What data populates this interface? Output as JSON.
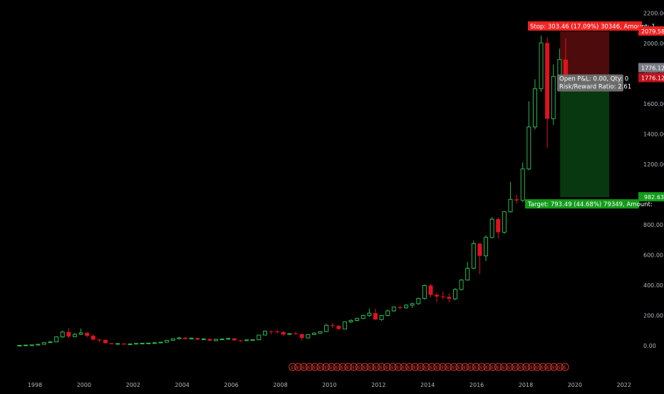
{
  "chart_data": {
    "type": "candlestick",
    "interval": "quarterly",
    "ylim": [
      -160,
      2230
    ],
    "y_ticks": [
      0,
      200,
      400,
      600,
      800,
      1000,
      1200,
      1400,
      1600,
      1800,
      2000,
      2200
    ],
    "y_tick_labels": [
      "0.00",
      "200.00",
      "400.00",
      "600.00",
      "800.00",
      "1000.00",
      "1200.00",
      "1400.00",
      "1600.00",
      "1800.00",
      "2000.00",
      "2200.00"
    ],
    "x_ticks": [
      1998,
      2000,
      2002,
      2004,
      2006,
      2008,
      2010,
      2012,
      2014,
      2016,
      2018,
      2020,
      2022
    ],
    "x_tick_labels": [
      "1998",
      "2000",
      "2002",
      "2004",
      "2006",
      "2008",
      "2010",
      "2012",
      "2014",
      "2016",
      "2018",
      "2020",
      "2022"
    ],
    "xlim": [
      1997.0,
      2022.6
    ],
    "candles": [
      {
        "t": 1997.375,
        "o": 1.5,
        "h": 3,
        "l": 1,
        "c": 2
      },
      {
        "t": 1997.625,
        "o": 2,
        "h": 5,
        "l": 1.5,
        "c": 4
      },
      {
        "t": 1997.875,
        "o": 4,
        "h": 6,
        "l": 3,
        "c": 5
      },
      {
        "t": 1998.125,
        "o": 5,
        "h": 10,
        "l": 4,
        "c": 9
      },
      {
        "t": 1998.375,
        "o": 9,
        "h": 22,
        "l": 8,
        "c": 20
      },
      {
        "t": 1998.625,
        "o": 20,
        "h": 30,
        "l": 18,
        "c": 25
      },
      {
        "t": 1998.875,
        "o": 25,
        "h": 62,
        "l": 24,
        "c": 58
      },
      {
        "t": 1999.125,
        "o": 58,
        "h": 100,
        "l": 50,
        "c": 90
      },
      {
        "t": 1999.375,
        "o": 90,
        "h": 115,
        "l": 50,
        "c": 60
      },
      {
        "t": 1999.625,
        "o": 60,
        "h": 85,
        "l": 55,
        "c": 75
      },
      {
        "t": 1999.875,
        "o": 75,
        "h": 113,
        "l": 70,
        "c": 85
      },
      {
        "t": 2000.125,
        "o": 85,
        "h": 90,
        "l": 55,
        "c": 65
      },
      {
        "t": 2000.375,
        "o": 65,
        "h": 75,
        "l": 35,
        "c": 40
      },
      {
        "t": 2000.625,
        "o": 40,
        "h": 45,
        "l": 25,
        "c": 38
      },
      {
        "t": 2000.875,
        "o": 38,
        "h": 40,
        "l": 14,
        "c": 16
      },
      {
        "t": 2001.125,
        "o": 16,
        "h": 18,
        "l": 8,
        "c": 10
      },
      {
        "t": 2001.375,
        "o": 10,
        "h": 16,
        "l": 8,
        "c": 14
      },
      {
        "t": 2001.625,
        "o": 14,
        "h": 16,
        "l": 6,
        "c": 8
      },
      {
        "t": 2001.875,
        "o": 8,
        "h": 15,
        "l": 6,
        "c": 11
      },
      {
        "t": 2002.125,
        "o": 11,
        "h": 17,
        "l": 10,
        "c": 15
      },
      {
        "t": 2002.375,
        "o": 15,
        "h": 18,
        "l": 12,
        "c": 16
      },
      {
        "t": 2002.625,
        "o": 16,
        "h": 19,
        "l": 13,
        "c": 17
      },
      {
        "t": 2002.875,
        "o": 17,
        "h": 24,
        "l": 15,
        "c": 19
      },
      {
        "t": 2003.125,
        "o": 19,
        "h": 25,
        "l": 17,
        "c": 23
      },
      {
        "t": 2003.375,
        "o": 23,
        "h": 38,
        "l": 21,
        "c": 35
      },
      {
        "t": 2003.625,
        "o": 35,
        "h": 48,
        "l": 33,
        "c": 45
      },
      {
        "t": 2003.875,
        "o": 45,
        "h": 58,
        "l": 42,
        "c": 52
      },
      {
        "t": 2004.125,
        "o": 52,
        "h": 58,
        "l": 40,
        "c": 44
      },
      {
        "t": 2004.375,
        "o": 44,
        "h": 54,
        "l": 42,
        "c": 50
      },
      {
        "t": 2004.625,
        "o": 50,
        "h": 52,
        "l": 35,
        "c": 40
      },
      {
        "t": 2004.875,
        "o": 40,
        "h": 50,
        "l": 38,
        "c": 44
      },
      {
        "t": 2005.125,
        "o": 44,
        "h": 46,
        "l": 30,
        "c": 33
      },
      {
        "t": 2005.375,
        "o": 33,
        "h": 45,
        "l": 30,
        "c": 42
      },
      {
        "t": 2005.625,
        "o": 42,
        "h": 48,
        "l": 38,
        "c": 44
      },
      {
        "t": 2005.875,
        "o": 44,
        "h": 50,
        "l": 38,
        "c": 48
      },
      {
        "t": 2006.125,
        "o": 48,
        "h": 49,
        "l": 33,
        "c": 35
      },
      {
        "t": 2006.375,
        "o": 35,
        "h": 38,
        "l": 25,
        "c": 34
      },
      {
        "t": 2006.625,
        "o": 34,
        "h": 40,
        "l": 30,
        "c": 38
      },
      {
        "t": 2006.875,
        "o": 38,
        "h": 42,
        "l": 34,
        "c": 39
      },
      {
        "t": 2007.125,
        "o": 39,
        "h": 72,
        "l": 36,
        "c": 70
      },
      {
        "t": 2007.375,
        "o": 70,
        "h": 101,
        "l": 68,
        "c": 95
      },
      {
        "t": 2007.625,
        "o": 95,
        "h": 100,
        "l": 75,
        "c": 93
      },
      {
        "t": 2007.875,
        "o": 93,
        "h": 105,
        "l": 80,
        "c": 90
      },
      {
        "t": 2008.125,
        "o": 90,
        "h": 96,
        "l": 65,
        "c": 74
      },
      {
        "t": 2008.375,
        "o": 74,
        "h": 84,
        "l": 70,
        "c": 80
      },
      {
        "t": 2008.625,
        "o": 80,
        "h": 92,
        "l": 72,
        "c": 76
      },
      {
        "t": 2008.875,
        "o": 76,
        "h": 80,
        "l": 35,
        "c": 51
      },
      {
        "t": 2009.125,
        "o": 51,
        "h": 75,
        "l": 47,
        "c": 73
      },
      {
        "t": 2009.375,
        "o": 73,
        "h": 88,
        "l": 70,
        "c": 83
      },
      {
        "t": 2009.625,
        "o": 83,
        "h": 95,
        "l": 78,
        "c": 93
      },
      {
        "t": 2009.875,
        "o": 93,
        "h": 145,
        "l": 90,
        "c": 135
      },
      {
        "t": 2010.125,
        "o": 135,
        "h": 150,
        "l": 115,
        "c": 131
      },
      {
        "t": 2010.375,
        "o": 131,
        "h": 135,
        "l": 105,
        "c": 110
      },
      {
        "t": 2010.625,
        "o": 110,
        "h": 160,
        "l": 108,
        "c": 157
      },
      {
        "t": 2010.875,
        "o": 157,
        "h": 175,
        "l": 150,
        "c": 167
      },
      {
        "t": 2011.125,
        "o": 167,
        "h": 185,
        "l": 160,
        "c": 180
      },
      {
        "t": 2011.375,
        "o": 180,
        "h": 205,
        "l": 175,
        "c": 200
      },
      {
        "t": 2011.625,
        "o": 200,
        "h": 245,
        "l": 190,
        "c": 215
      },
      {
        "t": 2011.875,
        "o": 215,
        "h": 245,
        "l": 170,
        "c": 173
      },
      {
        "t": 2012.125,
        "o": 173,
        "h": 200,
        "l": 165,
        "c": 200
      },
      {
        "t": 2012.375,
        "o": 200,
        "h": 240,
        "l": 195,
        "c": 230
      },
      {
        "t": 2012.625,
        "o": 230,
        "h": 260,
        "l": 225,
        "c": 255
      },
      {
        "t": 2012.875,
        "o": 255,
        "h": 265,
        "l": 240,
        "c": 250
      },
      {
        "t": 2013.125,
        "o": 250,
        "h": 275,
        "l": 245,
        "c": 268
      },
      {
        "t": 2013.375,
        "o": 268,
        "h": 285,
        "l": 250,
        "c": 278
      },
      {
        "t": 2013.625,
        "o": 278,
        "h": 318,
        "l": 270,
        "c": 312
      },
      {
        "t": 2013.875,
        "o": 312,
        "h": 405,
        "l": 305,
        "c": 398
      },
      {
        "t": 2014.125,
        "o": 398,
        "h": 408,
        "l": 320,
        "c": 336
      },
      {
        "t": 2014.375,
        "o": 336,
        "h": 350,
        "l": 285,
        "c": 325
      },
      {
        "t": 2014.625,
        "o": 325,
        "h": 358,
        "l": 305,
        "c": 322
      },
      {
        "t": 2014.875,
        "o": 322,
        "h": 345,
        "l": 285,
        "c": 310
      },
      {
        "t": 2015.125,
        "o": 310,
        "h": 380,
        "l": 300,
        "c": 372
      },
      {
        "t": 2015.375,
        "o": 372,
        "h": 440,
        "l": 365,
        "c": 434
      },
      {
        "t": 2015.625,
        "o": 434,
        "h": 555,
        "l": 430,
        "c": 512
      },
      {
        "t": 2015.875,
        "o": 512,
        "h": 696,
        "l": 505,
        "c": 675
      },
      {
        "t": 2016.125,
        "o": 675,
        "h": 680,
        "l": 474,
        "c": 594
      },
      {
        "t": 2016.375,
        "o": 594,
        "h": 731,
        "l": 560,
        "c": 716
      },
      {
        "t": 2016.625,
        "o": 716,
        "h": 850,
        "l": 710,
        "c": 837
      },
      {
        "t": 2016.875,
        "o": 837,
        "h": 847,
        "l": 710,
        "c": 750
      },
      {
        "t": 2017.125,
        "o": 750,
        "h": 890,
        "l": 740,
        "c": 886
      },
      {
        "t": 2017.375,
        "o": 886,
        "h": 1083,
        "l": 880,
        "c": 968
      },
      {
        "t": 2017.625,
        "o": 968,
        "h": 1000,
        "l": 940,
        "c": 961
      },
      {
        "t": 2017.875,
        "o": 961,
        "h": 1213,
        "l": 950,
        "c": 1169
      },
      {
        "t": 2018.125,
        "o": 1169,
        "h": 1617,
        "l": 1160,
        "c": 1447
      },
      {
        "t": 2018.375,
        "o": 1447,
        "h": 1763,
        "l": 1430,
        "c": 1700
      },
      {
        "t": 2018.625,
        "o": 1700,
        "h": 2050,
        "l": 1680,
        "c": 2003
      },
      {
        "t": 2018.875,
        "o": 2003,
        "h": 2039,
        "l": 1307,
        "c": 1502
      },
      {
        "t": 2019.125,
        "o": 1502,
        "h": 1860,
        "l": 1460,
        "c": 1781
      },
      {
        "t": 2019.375,
        "o": 1781,
        "h": 1965,
        "l": 1750,
        "c": 1893
      },
      {
        "t": 2019.625,
        "o": 1893,
        "h": 2035,
        "l": 1730,
        "c": 1776
      }
    ],
    "earnings_badges": {
      "from": 2008.5,
      "to": 2019.6,
      "count": 50,
      "symbol": "E"
    },
    "position": {
      "x_start": 2019.4,
      "x_end": 2021.4,
      "entry": 1776.12,
      "stop": 2079.58,
      "target": 982.63
    }
  },
  "labels": {
    "stop_text": "Stop: 303.46 (17.09%) 30346, Amount: 1",
    "target_text": "Target: 793.49 (44.68%) 79349, Amount:",
    "open_pl_text": "Open P&L: 0.00, Qty: 0",
    "rr_text": "Risk/Reward Ratio: 2.61",
    "price_tag_stop": "2079.58",
    "price_tag_last": "1776.12",
    "price_tag_entry": "1776.12",
    "price_tag_target": "982.63"
  },
  "colors": {
    "background": "#000000",
    "up": "#2db84f",
    "down": "#e0121f",
    "axis_text": "#b2b5be",
    "stop_zone": "#4d0b0b",
    "target_zone": "#08380f",
    "stop_label": "#f02323",
    "target_label": "#139b1a",
    "info_box": "#6b6b6b",
    "last_price": "#787b86",
    "entry_price": "#c2121b"
  }
}
